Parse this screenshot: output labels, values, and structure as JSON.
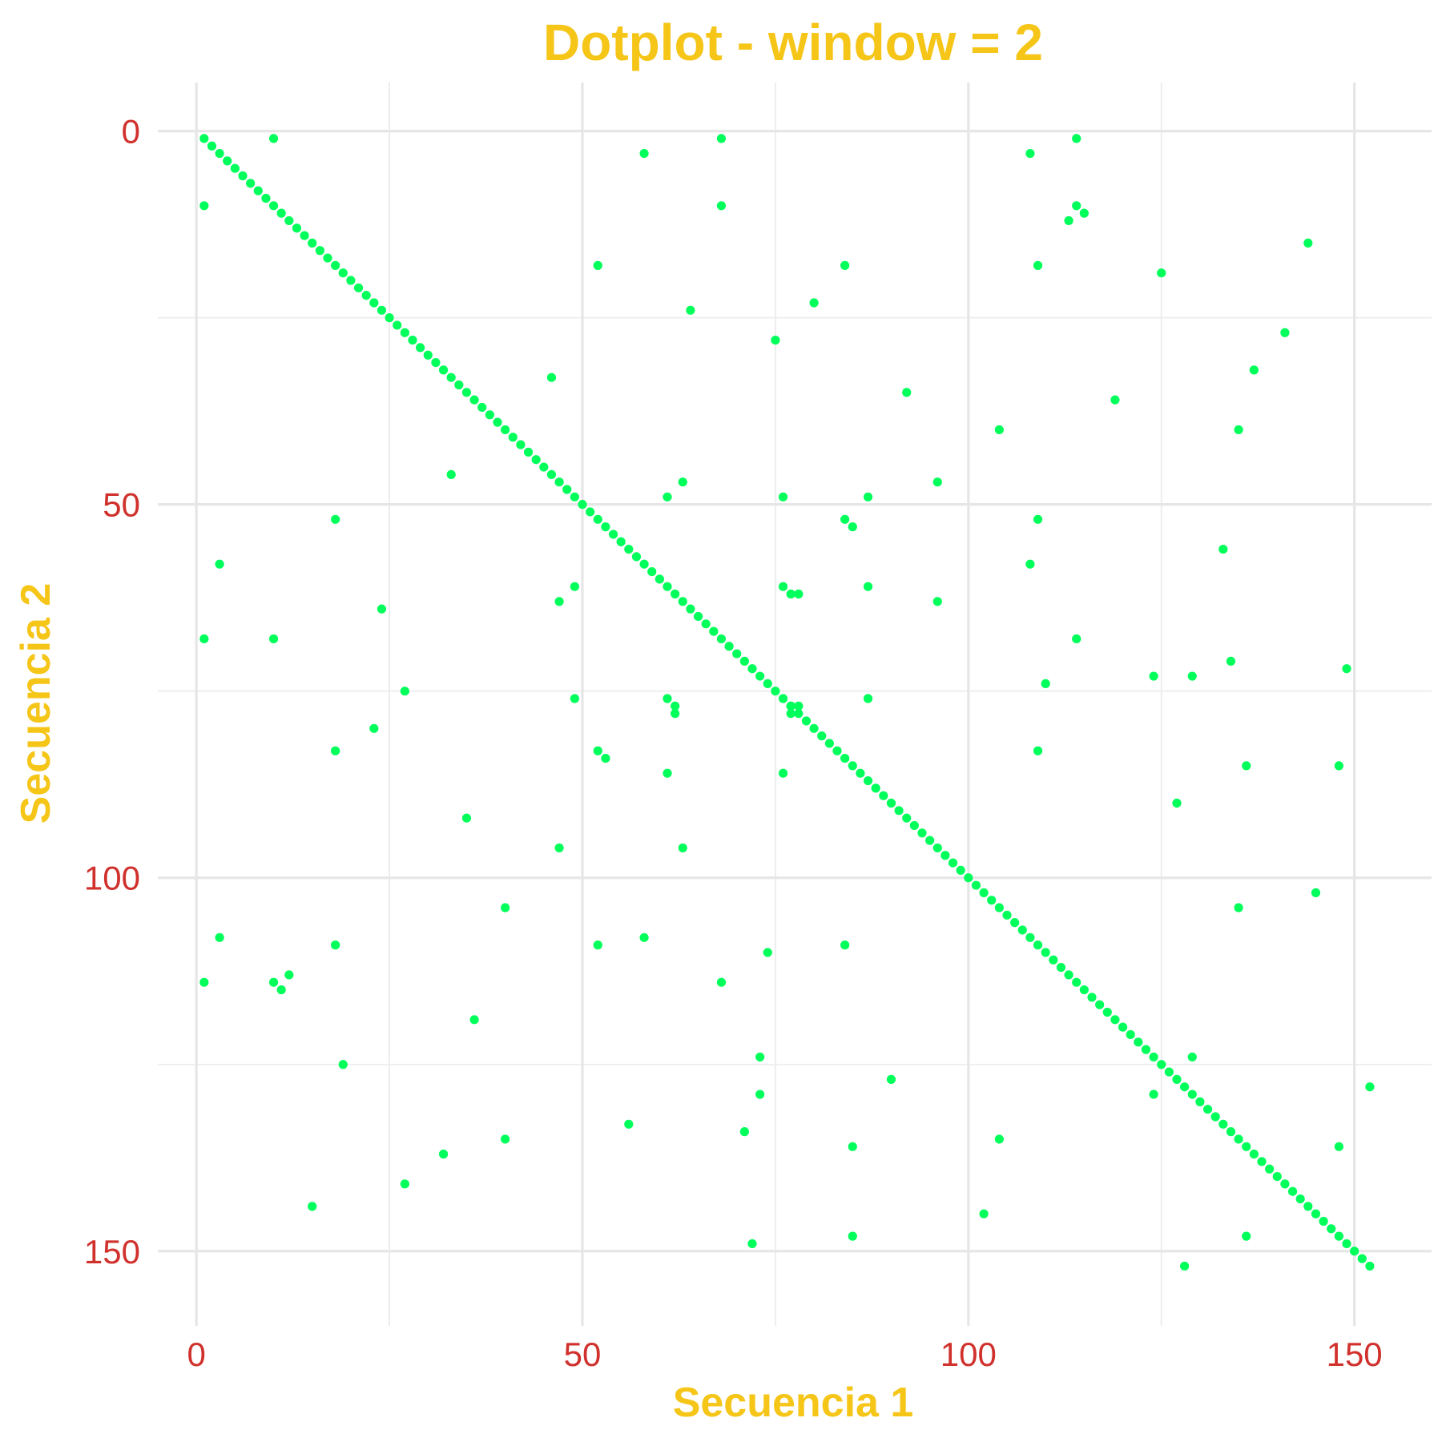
{
  "chart_data": {
    "type": "scatter",
    "title": "Dotplot - window = 2",
    "xlabel": "Secuencia 1",
    "ylabel": "Secuencia 2",
    "xlim": [
      -5,
      160
    ],
    "ylim": [
      -6.5,
      160
    ],
    "y_reversed": true,
    "grid": true,
    "x_ticks": [
      0,
      50,
      100,
      150
    ],
    "y_ticks": [
      0,
      50,
      100,
      150
    ],
    "point_color": "#00FF5A",
    "title_color": "#F5C518",
    "tick_label_color": "#D0312D",
    "diagonal": {
      "from": 1,
      "to": 152
    },
    "points": [
      [
        10,
        1
      ],
      [
        58,
        3
      ],
      [
        68,
        1
      ],
      [
        108,
        3
      ],
      [
        114,
        1
      ],
      [
        1,
        10
      ],
      [
        68,
        10
      ],
      [
        113,
        12
      ],
      [
        114,
        10
      ],
      [
        115,
        11
      ],
      [
        52,
        18
      ],
      [
        84,
        18
      ],
      [
        109,
        18
      ],
      [
        125,
        19
      ],
      [
        144,
        15
      ],
      [
        64,
        24
      ],
      [
        80,
        23
      ],
      [
        75,
        28
      ],
      [
        141,
        27
      ],
      [
        137,
        32
      ],
      [
        46,
        33
      ],
      [
        92,
        35
      ],
      [
        119,
        36
      ],
      [
        104,
        40
      ],
      [
        135,
        40
      ],
      [
        33,
        46
      ],
      [
        61,
        49
      ],
      [
        63,
        47
      ],
      [
        76,
        49
      ],
      [
        87,
        49
      ],
      [
        96,
        47
      ],
      [
        18,
        52
      ],
      [
        84,
        52
      ],
      [
        85,
        53
      ],
      [
        109,
        52
      ],
      [
        3,
        58
      ],
      [
        49,
        61
      ],
      [
        47,
        63
      ],
      [
        76,
        61
      ],
      [
        77,
        62
      ],
      [
        78,
        62
      ],
      [
        87,
        61
      ],
      [
        96,
        63
      ],
      [
        108,
        58
      ],
      [
        133,
        56
      ],
      [
        1,
        68
      ],
      [
        10,
        68
      ],
      [
        24,
        64
      ],
      [
        114,
        68
      ],
      [
        27,
        75
      ],
      [
        49,
        76
      ],
      [
        61,
        76
      ],
      [
        62,
        77
      ],
      [
        62,
        78
      ],
      [
        77,
        77
      ],
      [
        77,
        78
      ],
      [
        78,
        77
      ],
      [
        87,
        76
      ],
      [
        110,
        74
      ],
      [
        124,
        73
      ],
      [
        129,
        73
      ],
      [
        134,
        71
      ],
      [
        149,
        72
      ],
      [
        23,
        80
      ],
      [
        18,
        83
      ],
      [
        52,
        83
      ],
      [
        53,
        84
      ],
      [
        61,
        86
      ],
      [
        76,
        86
      ],
      [
        109,
        83
      ],
      [
        136,
        85
      ],
      [
        148,
        85
      ],
      [
        127,
        90
      ],
      [
        35,
        92
      ],
      [
        47,
        96
      ],
      [
        63,
        96
      ],
      [
        40,
        104
      ],
      [
        145,
        102
      ],
      [
        135,
        104
      ],
      [
        3,
        108
      ],
      [
        18,
        109
      ],
      [
        52,
        109
      ],
      [
        58,
        108
      ],
      [
        74,
        110
      ],
      [
        84,
        109
      ],
      [
        1,
        114
      ],
      [
        10,
        114
      ],
      [
        11,
        115
      ],
      [
        12,
        113
      ],
      [
        68,
        114
      ],
      [
        36,
        119
      ],
      [
        73,
        124
      ],
      [
        129,
        124
      ],
      [
        19,
        125
      ],
      [
        90,
        127
      ],
      [
        73,
        129
      ],
      [
        124,
        129
      ],
      [
        152,
        128
      ],
      [
        56,
        133
      ],
      [
        71,
        134
      ],
      [
        40,
        135
      ],
      [
        104,
        135
      ],
      [
        32,
        137
      ],
      [
        85,
        136
      ],
      [
        148,
        136
      ],
      [
        27,
        141
      ],
      [
        15,
        144
      ],
      [
        102,
        145
      ],
      [
        85,
        148
      ],
      [
        136,
        148
      ],
      [
        72,
        149
      ],
      [
        128,
        152
      ]
    ]
  }
}
